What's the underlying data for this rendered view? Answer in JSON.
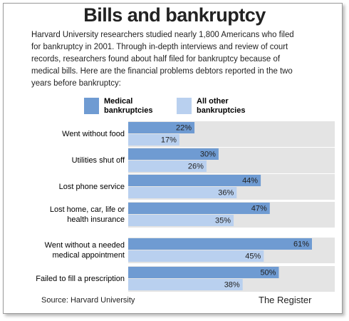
{
  "chart_data": {
    "type": "bar",
    "orientation": "horizontal",
    "title": "Bills and bankruptcy",
    "subtitle": "Harvard University researchers studied nearly 1,800 Americans who filed\nfor bankruptcy in 2001. Through in-depth interviews and review of court\nrecords, researchers found about half filed for bankruptcy because of\nmedical bills. Here are the financial problems debtors reported in the two\nyears before bankruptcy:",
    "categories": [
      "Went without food",
      "Utilities shut off",
      "Lost phone service",
      "Lost home, car, life or\nhealth insurance",
      "Went without a needed\nmedical appointment",
      "Failed to fill a prescription"
    ],
    "series": [
      {
        "name": "Medical\nbankruptcies",
        "color": "#6f9bd2",
        "values": [
          22,
          30,
          44,
          47,
          61,
          50
        ],
        "value_labels": [
          "22%",
          "30%",
          "44%",
          "47%",
          "61%",
          "50%"
        ]
      },
      {
        "name": "All other\nbankruptcies",
        "color": "#b9d0ef",
        "values": [
          17,
          26,
          36,
          35,
          45,
          38
        ],
        "value_labels": [
          "17%",
          "26%",
          "36%",
          "35%",
          "45%",
          "38%"
        ]
      }
    ],
    "source": "Source: Harvard University",
    "credit": "The Register"
  }
}
